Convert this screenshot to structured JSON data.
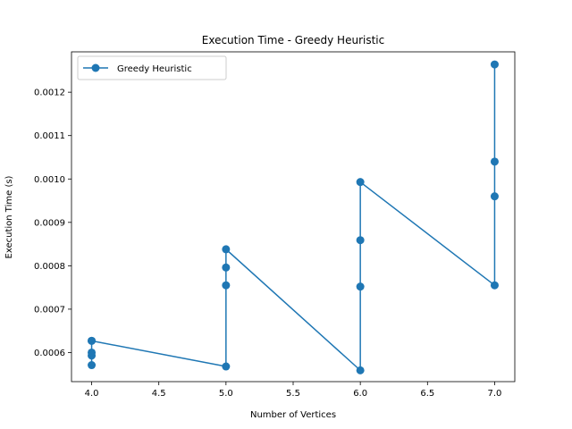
{
  "chart_data": {
    "type": "line",
    "title": "Execution Time - Greedy Heuristic",
    "xlabel": "Number of Vertices",
    "ylabel": "Execution Time (s)",
    "xlim": [
      3.85,
      7.15
    ],
    "ylim": [
      0.000533,
      0.001293
    ],
    "xticks": [
      4.0,
      4.5,
      5.0,
      5.5,
      6.0,
      6.5,
      7.0
    ],
    "xtick_labels": [
      "4.0",
      "4.5",
      "5.0",
      "5.5",
      "6.0",
      "6.5",
      "7.0"
    ],
    "yticks": [
      0.0006,
      0.0007,
      0.0008,
      0.0009,
      0.001,
      0.0011,
      0.0012
    ],
    "ytick_labels": [
      "0.0006",
      "0.0007",
      "0.0008",
      "0.0009",
      "0.0010",
      "0.0011",
      "0.0012"
    ],
    "grid": false,
    "legend": "upper-left",
    "series": [
      {
        "name": "Greedy Heuristic",
        "color": "#1f77b4",
        "marker": "circle",
        "x": [
          4,
          4,
          4,
          4,
          4,
          5,
          5,
          5,
          5,
          6,
          6,
          6,
          6,
          7,
          7,
          7,
          7
        ],
        "y": [
          0.000571,
          0.000593,
          0.0006,
          0.000627,
          0.000627,
          0.000568,
          0.000755,
          0.000796,
          0.000838,
          0.000559,
          0.000752,
          0.000859,
          0.000993,
          0.000755,
          0.00096,
          0.00104,
          0.001264
        ]
      }
    ]
  }
}
